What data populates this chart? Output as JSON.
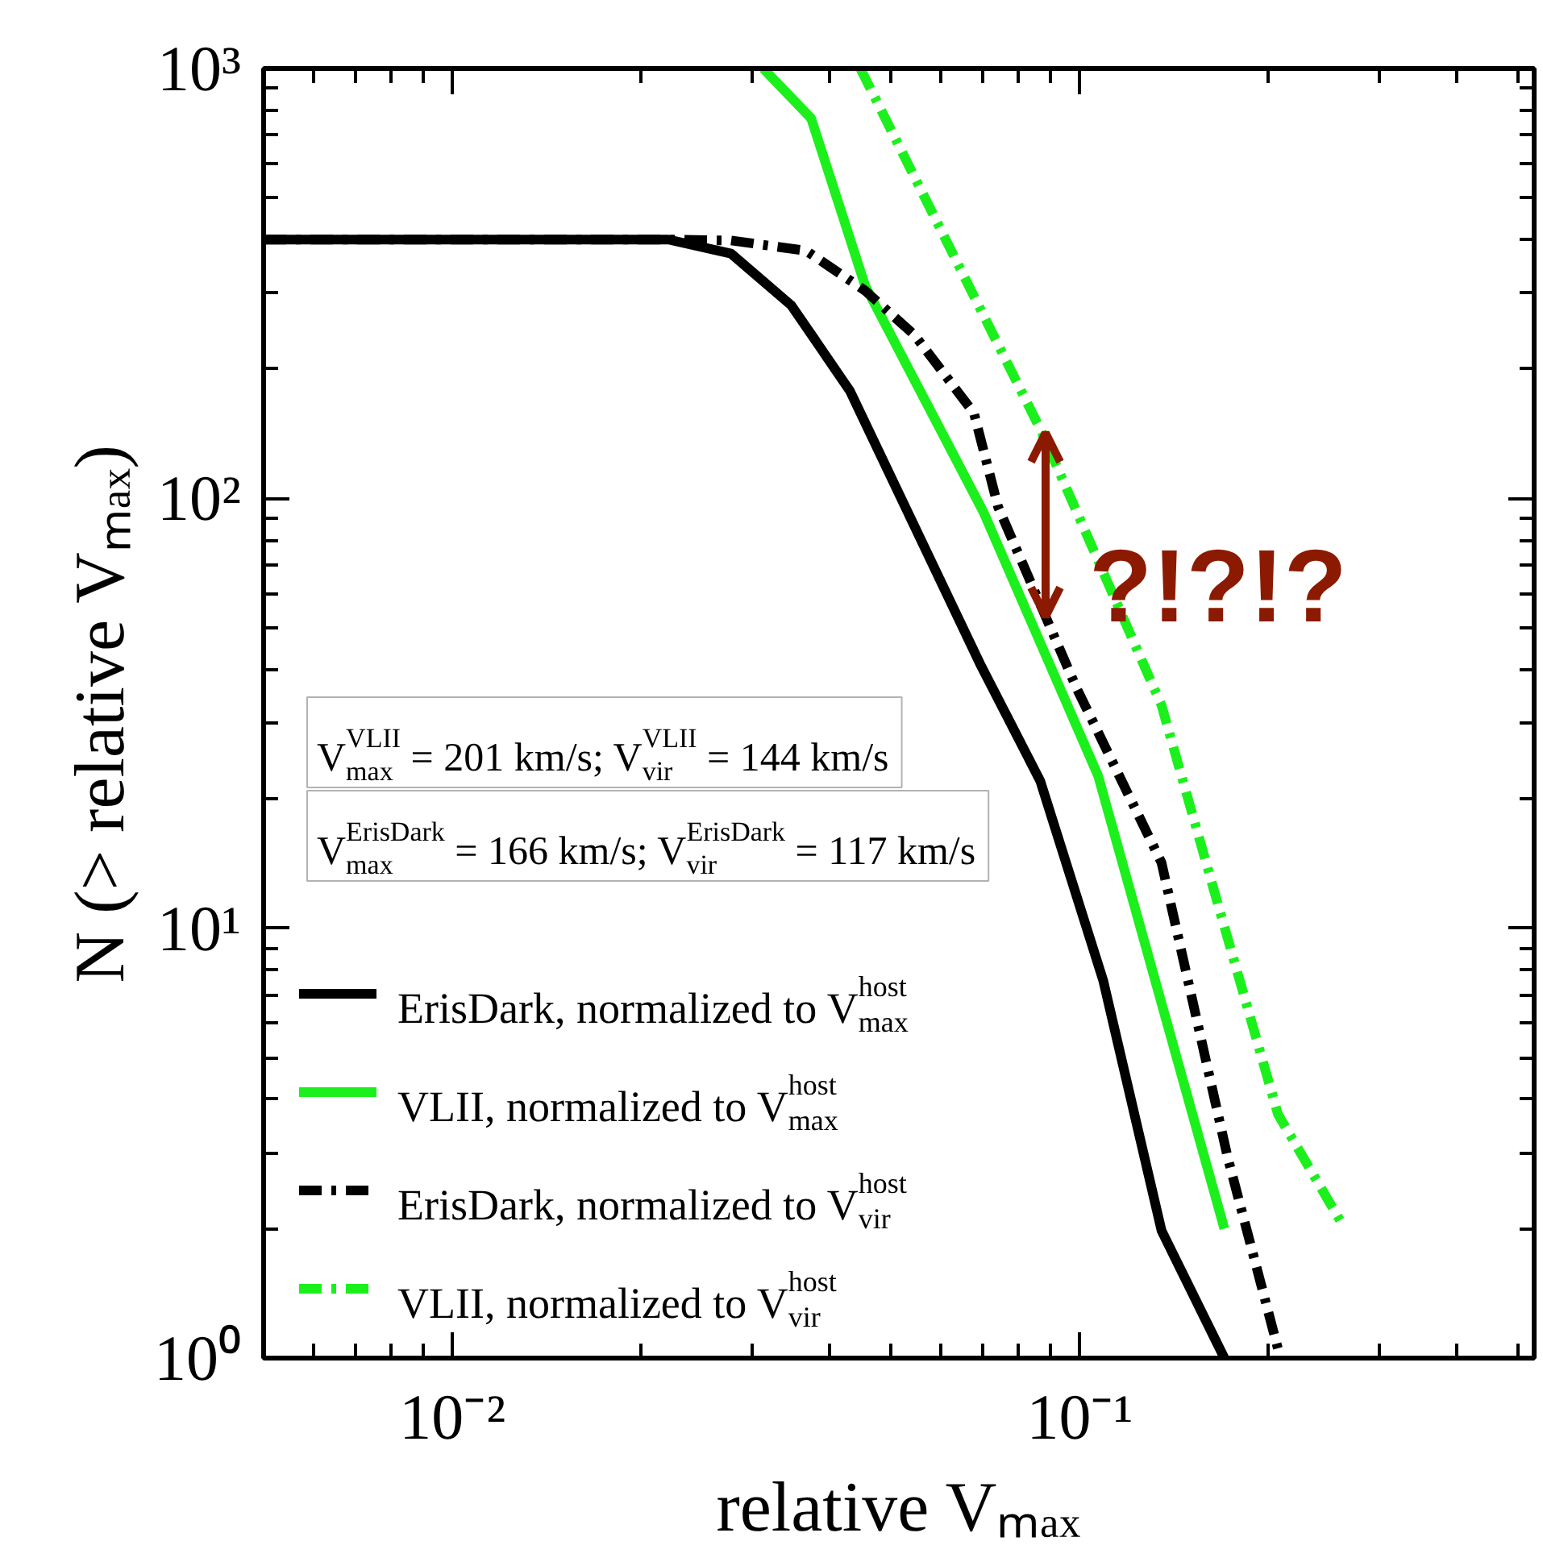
{
  "chart_data": {
    "type": "line",
    "xlabel": "relative Vₘₐₓ",
    "ylabel": "N (> relative Vₘₐₓ)",
    "xlim": [
      0.005,
      0.53
    ],
    "ylim": [
      1,
      1000
    ],
    "log": "xy",
    "grid": false,
    "legend": "bottom left",
    "xticks": [
      {
        "value": 0.01,
        "label": "10⁻²"
      },
      {
        "value": 0.1,
        "label": "10⁻¹"
      }
    ],
    "yticks": [
      {
        "value": 1,
        "label": "10⁰"
      },
      {
        "value": 10,
        "label": "10¹"
      },
      {
        "value": 100,
        "label": "10²"
      },
      {
        "value": 1000,
        "label": "10³"
      }
    ],
    "annotations": [
      "V$^{VLII}$$_{max}$ = 201 km/s; V$^{VLII}$$_{vir}$ = 144 km/s",
      "V$^{ErisDark}$$_{max}$ = 166 km/s; V$^{ErisDark}$$_{vir}$ = 117 km/s",
      "?!?!?"
    ],
    "series": [
      {
        "name": "ErisDark, normalized to V$^{host}$$_{max}$",
        "color": "#000000",
        "line_style": "solid",
        "x": [
          0.005,
          0.0221,
          0.0278,
          0.0347,
          0.043,
          0.0693,
          0.0865,
          0.109,
          0.135,
          0.17
        ],
        "values": [
          400,
          400,
          371,
          281,
          178,
          41.3,
          22,
          7.55,
          1.98,
          1
        ]
      },
      {
        "name": "VLII, normalized to V$^{host}$$_{max}$",
        "color": "#1cf01c",
        "line_style": "solid",
        "x": [
          0.0313,
          0.0373,
          0.0455,
          0.0702,
          0.107,
          0.17
        ],
        "values": [
          1000,
          766,
          312,
          93,
          22.6,
          2
        ]
      },
      {
        "name": "ErisDark, normalized to V$^{host}$$_{vir}$",
        "color": "#000000",
        "line_style": "dashdot",
        "x": [
          0.005,
          0.022,
          0.0278,
          0.0366,
          0.0455,
          0.0545,
          0.0678,
          0.0741,
          0.099,
          0.135,
          0.172,
          0.207
        ],
        "values": [
          400,
          400,
          398,
          377,
          304,
          240,
          158,
          95.5,
          36,
          14.2,
          2.94,
          1.05
        ]
      },
      {
        "name": "VLII, normalized to V$^{host}$$_{vir}$",
        "color": "#1cf01c",
        "line_style": "dashdot",
        "x": [
          0.0447,
          0.0871,
          0.135,
          0.162,
          0.207,
          0.261
        ],
        "values": [
          1000,
          142,
          33,
          12.9,
          3.69,
          2.07
        ]
      }
    ]
  }
}
